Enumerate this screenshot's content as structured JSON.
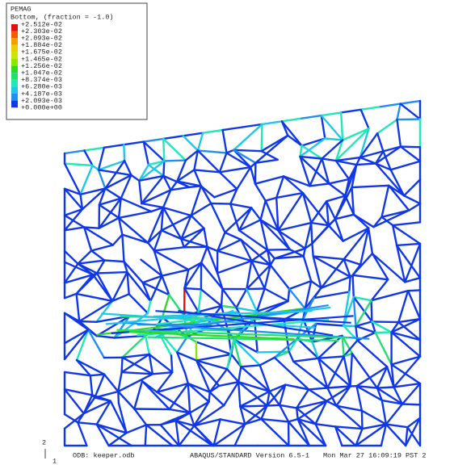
{
  "legend": {
    "title": "PEMAG",
    "subtitle": "Bottom, (fraction = -1.0)",
    "levels": [
      "+2.512e-02",
      "+2.303e-02",
      "+2.093e-02",
      "+1.884e-02",
      "+1.675e-02",
      "+1.465e-02",
      "+1.256e-02",
      "+1.047e-02",
      "+8.374e-03",
      "+6.280e-03",
      "+4.187e-03",
      "+2.093e-03",
      "+0.000e+00"
    ],
    "colors": [
      "#e01010",
      "#f05a00",
      "#f0a000",
      "#e8d000",
      "#c8e800",
      "#8ae800",
      "#30d820",
      "#20e070",
      "#20e8b8",
      "#20c8e8",
      "#2090f0",
      "#1038e8"
    ]
  },
  "footer": {
    "odb": "ODB: keeper.odb",
    "version": "ABAQUS/STANDARD Version 6.5-1",
    "date": "Mon Mar 27 16:09:19 PST 2"
  },
  "triad": {
    "vertical": "2",
    "horizontal": "1"
  }
}
